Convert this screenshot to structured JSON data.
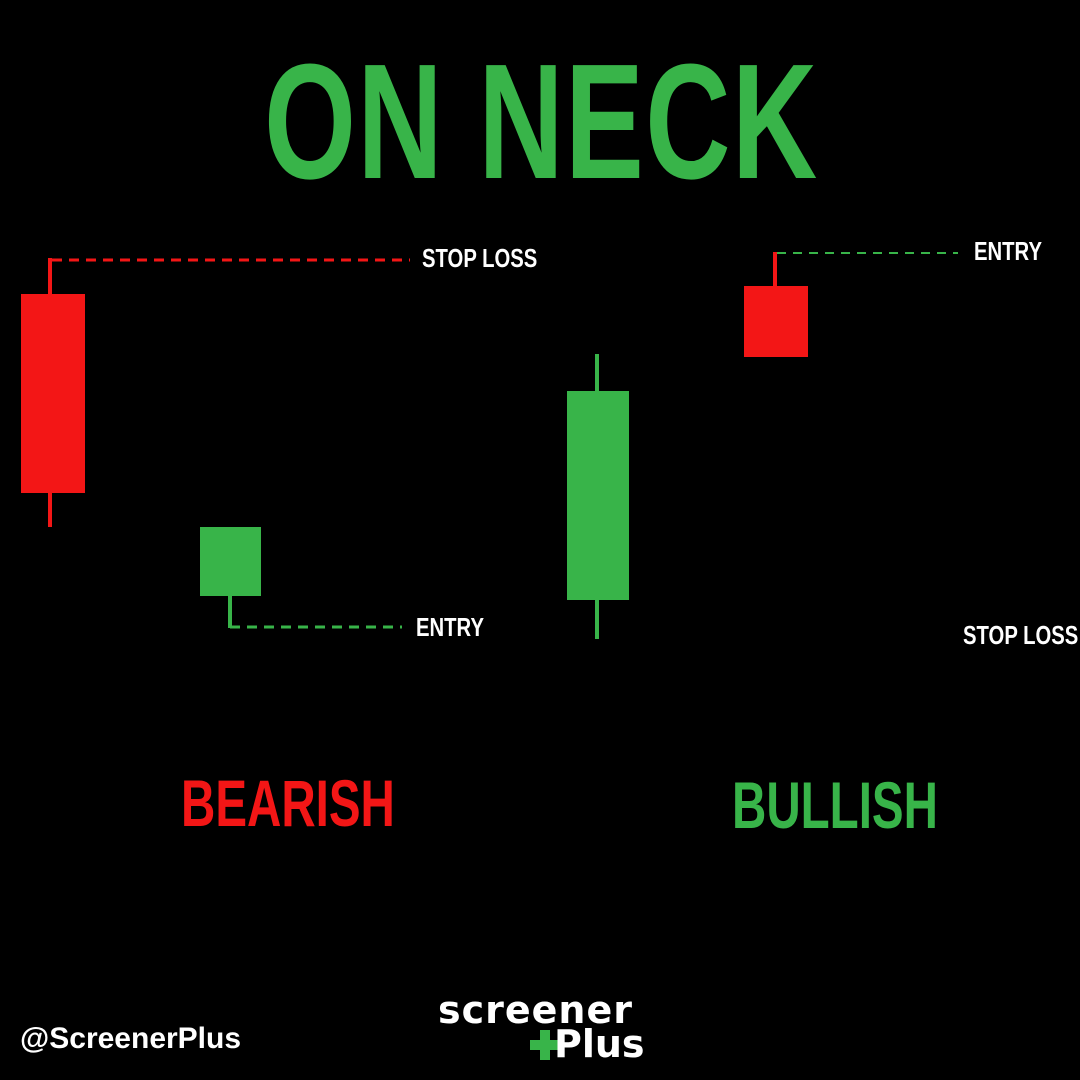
{
  "title": "ON NECK",
  "colors": {
    "background": "#000000",
    "bullish_green": "#38b449",
    "bearish_red": "#f31616",
    "label_text": "#ffffff"
  },
  "panels": {
    "bearish": {
      "label": "BEARISH",
      "stop_loss_label": "STOP LOSS",
      "entry_label": "ENTRY"
    },
    "bullish": {
      "label": "BULLISH",
      "entry_label": "ENTRY",
      "stop_loss_label": "STOP LOSS"
    }
  },
  "footer": {
    "handle": "@ScreenerPlus",
    "logo_line1": "screener",
    "logo_line2": "Plus"
  }
}
